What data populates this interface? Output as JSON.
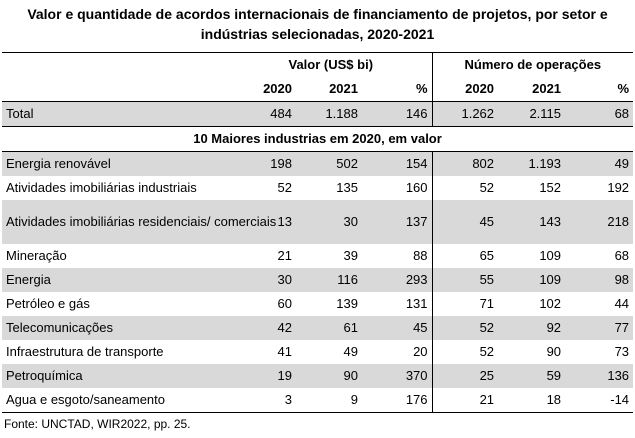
{
  "title_line1": "Valor e quantidade de acordos internacionais de financiamento de projetos, por setor e",
  "title_line2": "indústrias selecionadas, 2020-2021",
  "group_value": "Valor (US$ bi)",
  "group_ops": "Número de operações",
  "col_2020": "2020",
  "col_2021": "2021",
  "col_pct": "%",
  "total": {
    "label": "Total",
    "v2020": "484",
    "v2021": "1.188",
    "vpct": "146",
    "o2020": "1.262",
    "o2021": "2.115",
    "opct": "68"
  },
  "subheading": "10 Maiores industrias em 2020, em valor",
  "rows": [
    {
      "label": "Energia renovável",
      "v2020": "198",
      "v2021": "502",
      "vpct": "154",
      "o2020": "802",
      "o2021": "1.193",
      "opct": "49"
    },
    {
      "label": "Atividades imobiliárias industriais",
      "v2020": "52",
      "v2021": "135",
      "vpct": "160",
      "o2020": "52",
      "o2021": "152",
      "opct": "192"
    },
    {
      "label": "Atividades imobiliárias residenciais/ comerciais",
      "v2020": "13",
      "v2021": "30",
      "vpct": "137",
      "o2020": "45",
      "o2021": "143",
      "opct": "218"
    },
    {
      "label": "Mineração",
      "v2020": "21",
      "v2021": "39",
      "vpct": "88",
      "o2020": "65",
      "o2021": "109",
      "opct": "68"
    },
    {
      "label": "Energia",
      "v2020": "30",
      "v2021": "116",
      "vpct": "293",
      "o2020": "55",
      "o2021": "109",
      "opct": "98"
    },
    {
      "label": "Petróleo e gás",
      "v2020": "60",
      "v2021": "139",
      "vpct": "131",
      "o2020": "71",
      "o2021": "102",
      "opct": "44"
    },
    {
      "label": "Telecomunicações",
      "v2020": "42",
      "v2021": "61",
      "vpct": "45",
      "o2020": "52",
      "o2021": "92",
      "opct": "77"
    },
    {
      "label": "Infraestrutura de transporte",
      "v2020": "41",
      "v2021": "49",
      "vpct": "20",
      "o2020": "52",
      "o2021": "90",
      "opct": "73"
    },
    {
      "label": "Petroquímica",
      "v2020": "19",
      "v2021": "90",
      "vpct": "370",
      "o2020": "25",
      "o2021": "59",
      "opct": "136"
    },
    {
      "label": "Agua e esgoto/saneamento",
      "v2020": "3",
      "v2021": "9",
      "vpct": "176",
      "o2020": "21",
      "o2021": "18",
      "opct": "-14"
    }
  ],
  "source": "Fonte: UNCTAD, WIR2022, pp. 25."
}
